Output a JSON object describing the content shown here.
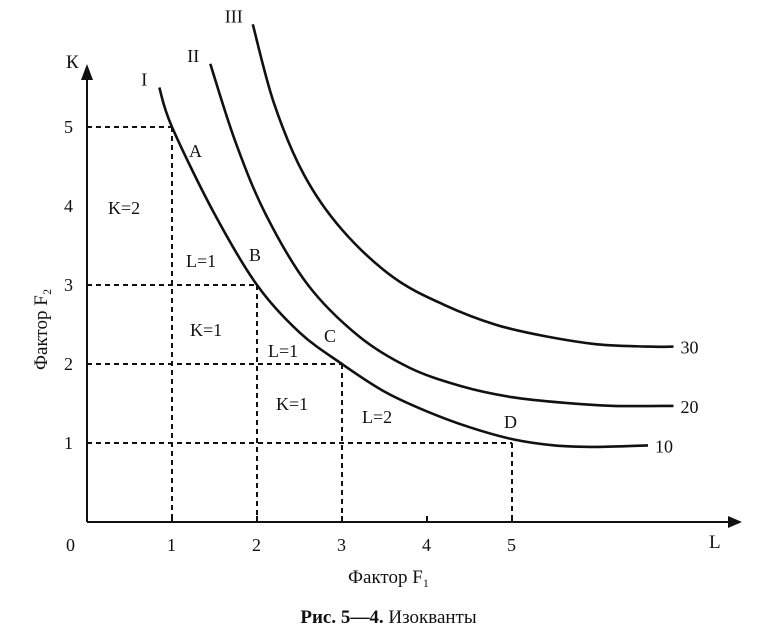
{
  "chart_data": {
    "type": "line",
    "title": "",
    "xlabel": "Фактор F₁",
    "ylabel": "Фактор F₂",
    "x_axis_letter": "L",
    "y_axis_letter": "К",
    "origin_label": "0",
    "xlim": [
      0,
      7.7
    ],
    "ylim": [
      0,
      5.8
    ],
    "x_ticks": [
      1,
      2,
      3,
      4,
      5
    ],
    "y_ticks": [
      1,
      2,
      3,
      4,
      5
    ],
    "series": [
      {
        "name": "10",
        "curve_label": "I",
        "points": [
          [
            0.85,
            5.5
          ],
          [
            1,
            5
          ],
          [
            1.5,
            3.9
          ],
          [
            2,
            3
          ],
          [
            2.5,
            2.4
          ],
          [
            3,
            2
          ],
          [
            3.5,
            1.65
          ],
          [
            4,
            1.4
          ],
          [
            4.5,
            1.2
          ],
          [
            5,
            1.05
          ],
          [
            5.5,
            0.97
          ],
          [
            6,
            0.95
          ],
          [
            6.6,
            0.97
          ]
        ]
      },
      {
        "name": "20",
        "curve_label": "II",
        "points": [
          [
            1.45,
            5.8
          ],
          [
            1.75,
            4.8
          ],
          [
            2.1,
            3.9
          ],
          [
            2.6,
            3.0
          ],
          [
            3.2,
            2.35
          ],
          [
            3.8,
            1.95
          ],
          [
            4.4,
            1.72
          ],
          [
            5.0,
            1.58
          ],
          [
            5.6,
            1.51
          ],
          [
            6.2,
            1.47
          ],
          [
            6.9,
            1.47
          ]
        ]
      },
      {
        "name": "30",
        "curve_label": "III",
        "points": [
          [
            1.95,
            6.3
          ],
          [
            2.2,
            5.3
          ],
          [
            2.55,
            4.4
          ],
          [
            3.0,
            3.7
          ],
          [
            3.6,
            3.1
          ],
          [
            4.2,
            2.75
          ],
          [
            4.8,
            2.5
          ],
          [
            5.4,
            2.35
          ],
          [
            6.0,
            2.25
          ],
          [
            6.6,
            2.22
          ],
          [
            6.9,
            2.22
          ]
        ]
      }
    ],
    "points": [
      {
        "label": "A",
        "x": 1,
        "y": 5
      },
      {
        "label": "B",
        "x": 2,
        "y": 3
      },
      {
        "label": "C",
        "x": 3,
        "y": 2
      },
      {
        "label": "D",
        "x": 5,
        "y": 1
      }
    ],
    "annotations": [
      "K=2",
      "L=1",
      "K=1",
      "L=1",
      "K=1",
      "L=2"
    ],
    "grid": false,
    "legend": "none"
  },
  "caption": {
    "bold": "Рис. 5—4.",
    "text": " Изокванты"
  }
}
